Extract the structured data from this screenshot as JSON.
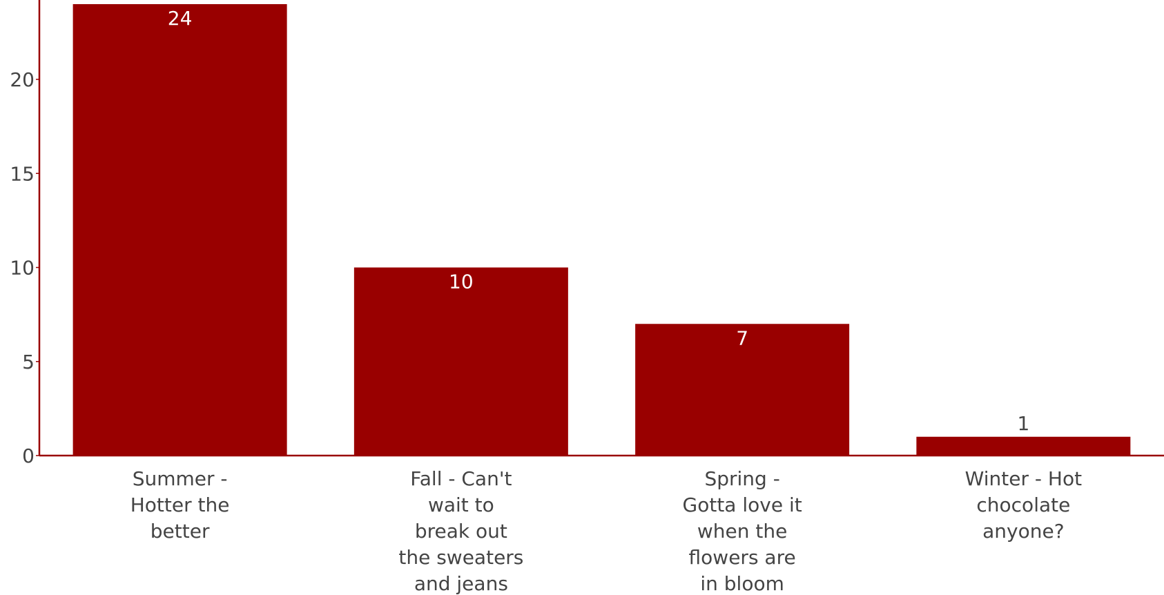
{
  "chart_data": {
    "type": "bar",
    "categories": [
      [
        "Summer -",
        "Hotter the",
        "better"
      ],
      [
        "Fall - Can't",
        "wait to",
        "break out",
        "the sweaters",
        "and jeans"
      ],
      [
        "Spring -",
        "Gotta love it",
        "when the",
        "flowers are",
        "in bloom"
      ],
      [
        "Winter - Hot",
        "chocolate",
        "anyone?"
      ]
    ],
    "values": [
      24,
      10,
      7,
      1
    ],
    "data_labels": [
      "24",
      "10",
      "7",
      "1"
    ],
    "y_ticks": [
      "0",
      "5",
      "10",
      "15",
      "20"
    ],
    "ylim": [
      0,
      24
    ],
    "title": "",
    "xlabel": "",
    "ylabel": "",
    "grid": false,
    "colors": {
      "bar": "#990000",
      "axis": "#990000",
      "label_inside": "#ffffff",
      "label_outside": "#444444",
      "tick_text": "#444444"
    }
  }
}
